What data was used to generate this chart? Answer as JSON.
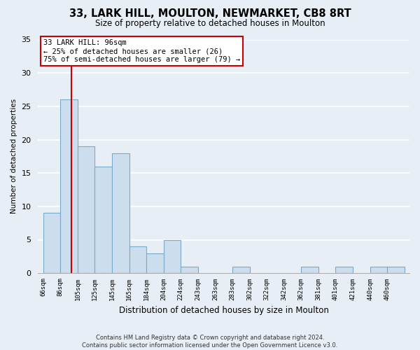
{
  "title": "33, LARK HILL, MOULTON, NEWMARKET, CB8 8RT",
  "subtitle": "Size of property relative to detached houses in Moulton",
  "xlabel": "Distribution of detached houses by size in Moulton",
  "ylabel": "Number of detached properties",
  "footer_line1": "Contains HM Land Registry data © Crown copyright and database right 2024.",
  "footer_line2": "Contains public sector information licensed under the Open Government Licence v3.0.",
  "bar_labels": [
    "66sqm",
    "86sqm",
    "105sqm",
    "125sqm",
    "145sqm",
    "165sqm",
    "184sqm",
    "204sqm",
    "224sqm",
    "243sqm",
    "263sqm",
    "283sqm",
    "302sqm",
    "322sqm",
    "342sqm",
    "362sqm",
    "381sqm",
    "401sqm",
    "421sqm",
    "440sqm",
    "460sqm"
  ],
  "bar_values": [
    9,
    26,
    19,
    16,
    18,
    4,
    3,
    5,
    1,
    0,
    0,
    1,
    0,
    0,
    0,
    1,
    0,
    1,
    0,
    1,
    1
  ],
  "bar_color": "#ccdded",
  "bar_edgecolor": "#7aaac8",
  "vline_color": "#cc0000",
  "vline_x_index": 1.65,
  "ylim": [
    0,
    35
  ],
  "yticks": [
    0,
    5,
    10,
    15,
    20,
    25,
    30,
    35
  ],
  "annotation_text": "33 LARK HILL: 96sqm\n← 25% of detached houses are smaller (26)\n75% of semi-detached houses are larger (79) →",
  "annotation_box_facecolor": "white",
  "annotation_box_edgecolor": "#cc0000",
  "background_color": "#e8eef5",
  "grid_color": "white",
  "title_fontsize": 10.5,
  "subtitle_fontsize": 8.5
}
